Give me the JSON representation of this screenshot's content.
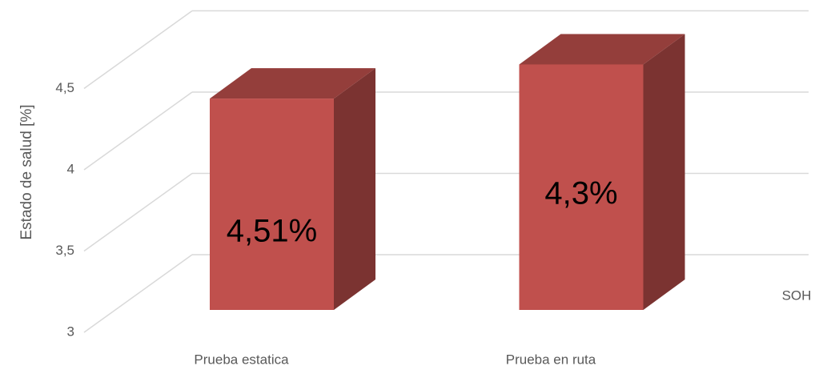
{
  "chart_data": {
    "type": "bar3d",
    "y_label": "Estado de salud  [%]",
    "categories": [
      "Prueba estatica",
      "Prueba en ruta"
    ],
    "series": [
      {
        "name": "SOH",
        "color": "#c0504d",
        "values": [
          4.3,
          4.51
        ]
      }
    ],
    "annotations": [
      "4,51%",
      "4,3%"
    ],
    "ylim": [
      3,
      4.5
    ],
    "yticks": [
      3,
      {
        "value": 3.5,
        "label": "3,5"
      },
      4,
      {
        "value": 4.5,
        "label": "4,5"
      }
    ],
    "grid": true
  }
}
